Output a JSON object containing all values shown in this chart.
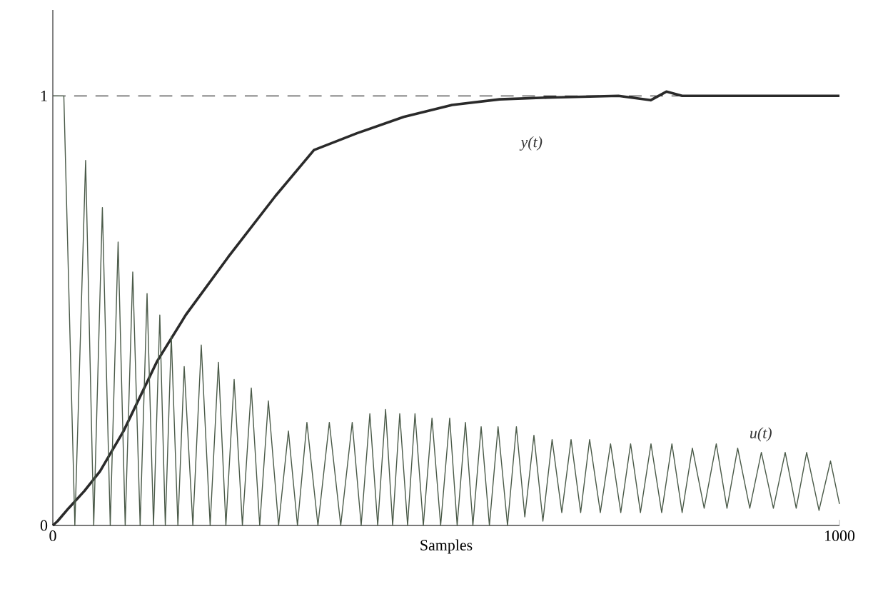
{
  "chart_data": {
    "type": "line",
    "xlabel": "Samples",
    "xlim": [
      0,
      1000
    ],
    "ylim": [
      0,
      1.2
    ],
    "xticks": [
      0,
      1000
    ],
    "yticks": [
      0,
      1
    ],
    "ref_lines": [
      {
        "axis": "y",
        "value": 1,
        "color": "#333333",
        "line_style": "dashed"
      }
    ],
    "series": [
      {
        "name": "y(t)",
        "color": "#2a2a2a",
        "x": [
          0,
          6,
          20,
          40,
          60,
          90,
          132.5,
          169,
          223,
          283,
          332,
          386.6,
          446,
          507.6,
          568,
          628,
          719,
          760,
          780,
          800,
          1000
        ],
        "values": [
          0,
          0.01,
          0.04,
          0.08,
          0.126,
          0.22,
          0.382,
          0.49,
          0.625,
          0.767,
          0.874,
          0.913,
          0.951,
          0.979,
          0.992,
          0.996,
          1.0,
          0.99,
          1.01,
          1.0,
          1.0
        ]
      },
      {
        "name": "u(t)",
        "color": "#4a5a48",
        "x": [
          0,
          14,
          28,
          41.7,
          52,
          63,
          73,
          83,
          92,
          101.6,
          111,
          119.8,
          128,
          136,
          143,
          150.6,
          159,
          167,
          178,
          188.7,
          200,
          210.5,
          220,
          230.5,
          241,
          252.3,
          263,
          274,
          287,
          299.5,
          311,
          323,
          337,
          351.5,
          366,
          380.6,
          392,
          403,
          413,
          423,
          432,
          441,
          451,
          460.4,
          471,
          482,
          493,
          504.5,
          514,
          524.5,
          534,
          544.5,
          555,
          566,
          578,
          589.3,
          600,
          611.6,
          623,
          634.7,
          647,
          658.8,
          671,
          682.4,
          696,
          709,
          722,
          734.5,
          747,
          760.4,
          774,
          787,
          800,
          813,
          828,
          843.4,
          857,
          870.6,
          886,
          900.7,
          916,
          931,
          945,
          958.3,
          974,
          988.6,
          1000
        ],
        "values": [
          1,
          1,
          0,
          0.85,
          0,
          0.74,
          0,
          0.66,
          0,
          0.59,
          0,
          0.54,
          0,
          0.49,
          0,
          0.44,
          0,
          0.37,
          0,
          0.42,
          0,
          0.38,
          0,
          0.34,
          0,
          0.32,
          0,
          0.29,
          0,
          0.22,
          0,
          0.24,
          0,
          0.24,
          0,
          0.24,
          0,
          0.26,
          0,
          0.27,
          0,
          0.26,
          0,
          0.26,
          0,
          0.25,
          0,
          0.25,
          0,
          0.24,
          0,
          0.23,
          0,
          0.23,
          0,
          0.23,
          0.02,
          0.21,
          0.01,
          0.2,
          0.03,
          0.2,
          0.03,
          0.2,
          0.03,
          0.19,
          0.03,
          0.19,
          0.03,
          0.19,
          0.03,
          0.19,
          0.03,
          0.18,
          0.04,
          0.19,
          0.04,
          0.18,
          0.04,
          0.17,
          0.04,
          0.17,
          0.04,
          0.17,
          0.035,
          0.15,
          0.05
        ]
      }
    ]
  }
}
